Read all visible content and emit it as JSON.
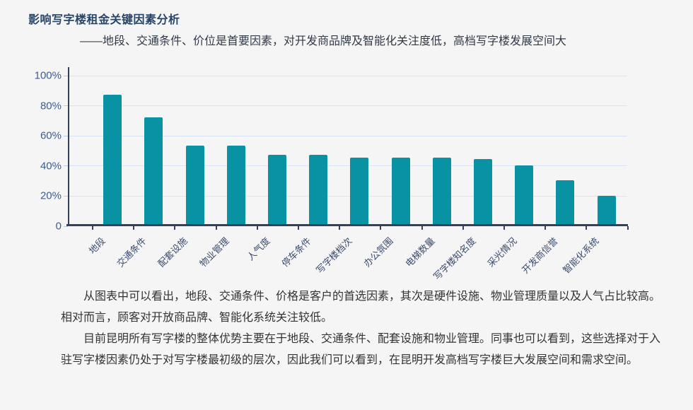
{
  "chart_data": {
    "type": "bar",
    "title": "影响写字楼租金关键因素分析",
    "subtitle": "——地段、交通条件、价位是首要因素，对开发商品牌及智能化关注度低，高档写字楼发展空间大",
    "categories": [
      "地段",
      "交通条件",
      "配套设施",
      "物业管理",
      "人气度",
      "停车条件",
      "写字楼档次",
      "办公氛围",
      "电梯数量",
      "写字楼知名度",
      "采光情况",
      "开发商信誉",
      "智能化系统"
    ],
    "values": [
      86,
      71,
      52,
      52,
      46,
      46,
      44,
      44,
      44,
      43,
      39,
      29,
      19
    ],
    "unit": "%",
    "xlabel": "",
    "ylabel": "",
    "ylim": [
      0,
      100
    ],
    "yticks": [
      0,
      20,
      40,
      60,
      80,
      100
    ],
    "ytick_labels": [
      "0",
      "20%",
      "40%",
      "60%",
      "80%",
      "100%"
    ],
    "grid": true,
    "legend": false,
    "colors": {
      "bar": "#0892a4",
      "axis": "#33425b",
      "gridline": "#d8e4f5",
      "y_tick_label": "#3e5c8e",
      "x_tick_label": "#3c4d6e",
      "title": "#274569",
      "subtitle": "#323a46",
      "body_text": "#333333",
      "background": "#f5f5f6"
    }
  },
  "paragraphs": [
    "从图表中可以看出，地段、交通条件、价格是客户的首选因素，其次是硬件设施、物业管理质量以及人气占比较高。相对而言，顾客对开放商品牌、智能化系统关注较低。",
    "目前昆明所有写字楼的整体优势主要在于地段、交通条件、配套设施和物业管理。同事也可以看到，这些选择对于入驻写字楼因素仍处于对写字楼最初级的层次，因此我们可以看到，在昆明开发高档写字楼巨大发展空间和需求空间。"
  ]
}
